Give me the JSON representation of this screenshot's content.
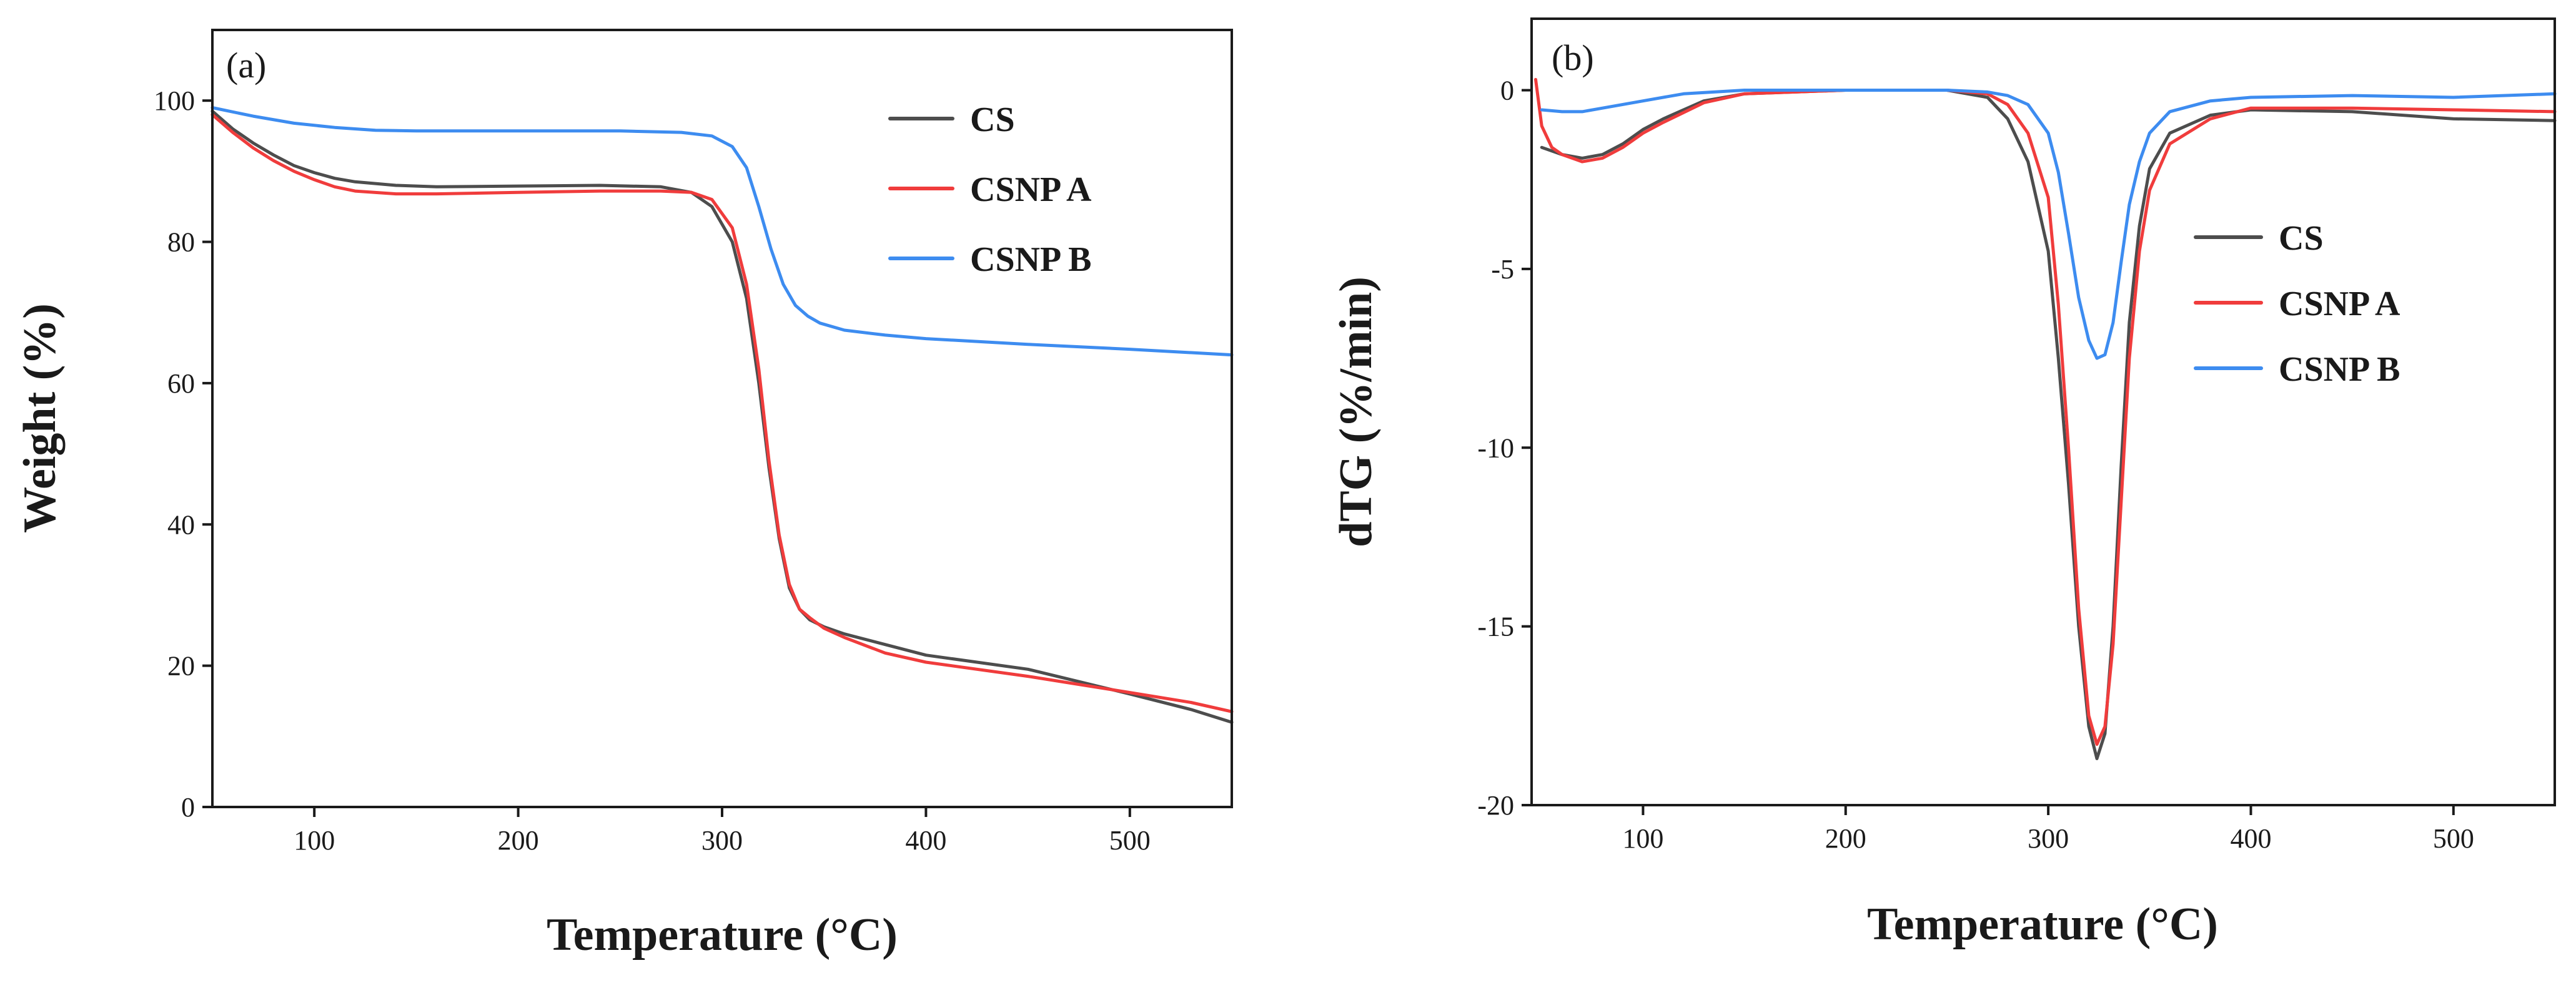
{
  "chart_data": [
    {
      "type": "line",
      "panel_label": "(a)",
      "title": "",
      "xlabel": "Temperature (°C)",
      "ylabel": "Weight (%)",
      "xlim": [
        50,
        550
      ],
      "ylim": [
        0,
        110
      ],
      "xticks": [
        100,
        200,
        300,
        400,
        500
      ],
      "yticks": [
        0,
        20,
        40,
        60,
        80,
        100
      ],
      "grid": false,
      "legend_position": "top-right",
      "series": [
        {
          "name": "CS",
          "color": "#4d4d4d",
          "x": [
            50,
            60,
            70,
            80,
            90,
            100,
            110,
            120,
            140,
            160,
            200,
            240,
            270,
            285,
            295,
            305,
            312,
            318,
            323,
            328,
            333,
            338,
            343,
            350,
            360,
            380,
            400,
            450,
            500,
            530,
            550
          ],
          "y": [
            98.5,
            96,
            94,
            92.3,
            90.8,
            89.8,
            89,
            88.5,
            88,
            87.8,
            87.9,
            88,
            87.8,
            87,
            85,
            80,
            72,
            60,
            48,
            38,
            31,
            28,
            26.5,
            25.5,
            24.5,
            23,
            21.5,
            19.5,
            16,
            13.8,
            12
          ]
        },
        {
          "name": "CSNP A",
          "color": "#f03c3c",
          "x": [
            50,
            60,
            70,
            80,
            90,
            100,
            110,
            120,
            140,
            160,
            200,
            240,
            270,
            285,
            295,
            305,
            312,
            318,
            323,
            328,
            333,
            338,
            343,
            350,
            360,
            380,
            400,
            450,
            500,
            530,
            550
          ],
          "y": [
            98,
            95.5,
            93.3,
            91.5,
            90,
            88.8,
            87.8,
            87.2,
            86.8,
            86.8,
            87,
            87.2,
            87.2,
            87,
            86,
            82,
            74,
            62,
            49,
            38.5,
            31.5,
            28,
            26.8,
            25.3,
            24,
            21.8,
            20.5,
            18.5,
            16.2,
            14.8,
            13.5
          ]
        },
        {
          "name": "CSNP B",
          "color": "#3d8cf0",
          "x": [
            50,
            70,
            90,
            110,
            130,
            150,
            200,
            250,
            280,
            295,
            305,
            312,
            318,
            324,
            330,
            336,
            342,
            348,
            360,
            380,
            400,
            450,
            500,
            550
          ],
          "y": [
            99,
            97.8,
            96.8,
            96.2,
            95.8,
            95.7,
            95.7,
            95.7,
            95.5,
            95,
            93.5,
            90.5,
            85,
            79,
            74,
            71,
            69.5,
            68.5,
            67.5,
            66.8,
            66.3,
            65.5,
            64.8,
            64
          ]
        }
      ]
    },
    {
      "type": "line",
      "panel_label": "(b)",
      "title": "",
      "xlabel": "Temperature (°C)",
      "ylabel": "dTG (%/min)",
      "xlim": [
        45,
        550
      ],
      "ylim": [
        -20,
        2
      ],
      "xticks": [
        100,
        200,
        300,
        400,
        500
      ],
      "yticks": [
        0,
        -5,
        -10,
        -15,
        -20
      ],
      "grid": false,
      "legend_position": "center-right",
      "series": [
        {
          "name": "CS",
          "color": "#4d4d4d",
          "x": [
            50,
            60,
            70,
            80,
            90,
            100,
            110,
            130,
            150,
            200,
            250,
            270,
            280,
            290,
            300,
            305,
            310,
            315,
            320,
            324,
            328,
            332,
            336,
            340,
            345,
            350,
            360,
            380,
            400,
            450,
            500,
            550
          ],
          "y": [
            -1.6,
            -1.8,
            -1.9,
            -1.8,
            -1.5,
            -1.1,
            -0.8,
            -0.3,
            -0.1,
            0,
            0,
            -0.2,
            -0.8,
            -2,
            -4.5,
            -7.5,
            -11,
            -15,
            -17.8,
            -18.7,
            -18,
            -15,
            -10.5,
            -6.5,
            -3.8,
            -2.2,
            -1.2,
            -0.7,
            -0.55,
            -0.6,
            -0.8,
            -0.85
          ]
        },
        {
          "name": "CSNP A",
          "color": "#f03c3c",
          "x": [
            47,
            50,
            55,
            60,
            70,
            80,
            90,
            100,
            110,
            130,
            150,
            200,
            250,
            270,
            280,
            290,
            300,
            305,
            310,
            315,
            320,
            324,
            328,
            332,
            336,
            340,
            345,
            350,
            360,
            380,
            400,
            450,
            500,
            550
          ],
          "y": [
            0.3,
            -1,
            -1.6,
            -1.8,
            -2,
            -1.9,
            -1.6,
            -1.2,
            -0.9,
            -0.35,
            -0.1,
            0,
            0,
            -0.1,
            -0.4,
            -1.2,
            -3,
            -6,
            -10,
            -14.5,
            -17.5,
            -18.3,
            -17.8,
            -15.5,
            -11.5,
            -7.5,
            -4.5,
            -2.8,
            -1.5,
            -0.8,
            -0.5,
            -0.5,
            -0.55,
            -0.6
          ]
        },
        {
          "name": "CSNP B",
          "color": "#3d8cf0",
          "x": [
            50,
            60,
            70,
            80,
            100,
            120,
            150,
            200,
            250,
            270,
            280,
            290,
            300,
            305,
            310,
            315,
            320,
            324,
            328,
            332,
            336,
            340,
            345,
            350,
            360,
            380,
            400,
            450,
            500,
            550
          ],
          "y": [
            -0.55,
            -0.6,
            -0.6,
            -0.5,
            -0.3,
            -0.1,
            0,
            0,
            0,
            -0.05,
            -0.15,
            -0.4,
            -1.2,
            -2.3,
            -4,
            -5.8,
            -7,
            -7.5,
            -7.4,
            -6.5,
            -4.8,
            -3.2,
            -2,
            -1.2,
            -0.6,
            -0.3,
            -0.2,
            -0.15,
            -0.2,
            -0.1
          ]
        }
      ]
    }
  ]
}
